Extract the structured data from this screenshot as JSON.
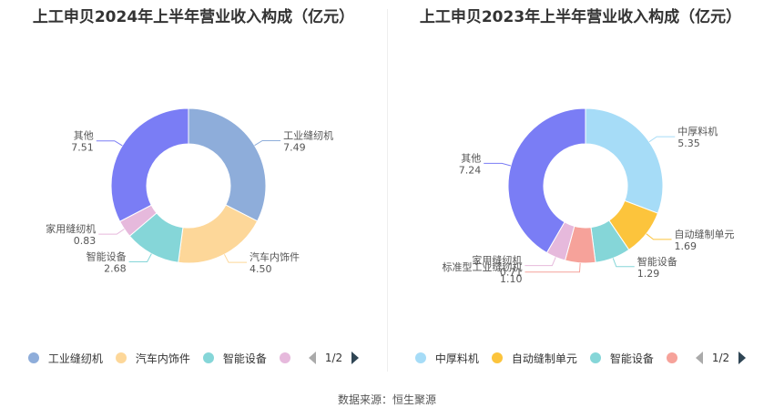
{
  "source": "数据来源：恒生聚源",
  "chart_data": [
    {
      "type": "pie",
      "title": "上工申贝2024年上半年营业收入构成（亿元）",
      "slices": [
        {
          "name": "工业缝纫机",
          "value": "7.49",
          "color": "#8eadda"
        },
        {
          "name": "汽车内饰件",
          "value": "4.50",
          "color": "#fdd799"
        },
        {
          "name": "智能设备",
          "value": "2.68",
          "color": "#85d6d8"
        },
        {
          "name": "家用缝纫机",
          "value": "0.83",
          "color": "#e6b9dc"
        },
        {
          "name": "其他",
          "value": "7.51",
          "color": "#7a7df5"
        }
      ],
      "legend": {
        "items": [
          "工业缝纫机",
          "汽车内饰件",
          "智能设备"
        ],
        "partial_color": "#e6b9dc",
        "page": "1/2",
        "placement": "bottom"
      }
    },
    {
      "type": "pie",
      "title": "上工申贝2023年上半年营业收入构成（亿元）",
      "slices": [
        {
          "name": "中厚料机",
          "value": "5.35",
          "color": "#a6dcf7"
        },
        {
          "name": "自动缝制单元",
          "value": "1.69",
          "color": "#fcc43c"
        },
        {
          "name": "智能设备",
          "value": "1.29",
          "color": "#85d6d8"
        },
        {
          "name": "标准型工业缝纫机",
          "value": "1.10",
          "color": "#f6a29a"
        },
        {
          "name": "家用缝纫机",
          "value": "0.71",
          "color": "#e6b9dc"
        },
        {
          "name": "其他",
          "value": "7.24",
          "color": "#7a7df5"
        }
      ],
      "legend": {
        "items": [
          "中厚料机",
          "自动缝制单元",
          "智能设备"
        ],
        "partial_color": "#f6a29a",
        "page": "1/2",
        "placement": "bottom"
      }
    }
  ]
}
